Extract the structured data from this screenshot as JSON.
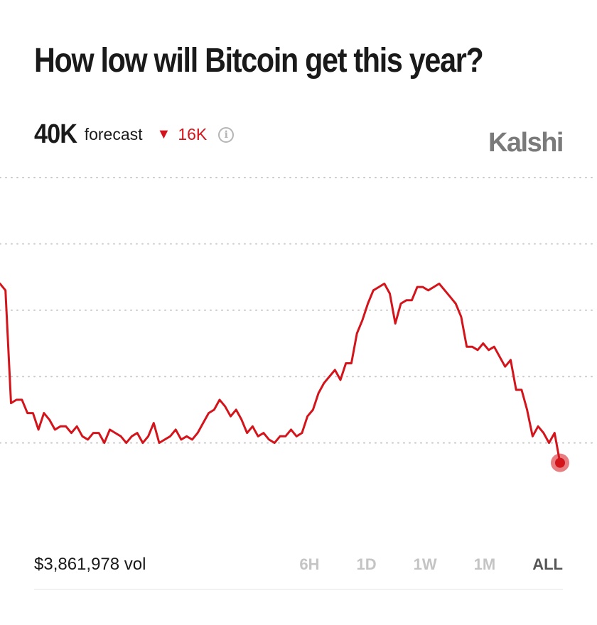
{
  "header": {
    "title": "How low will Bitcoin get this year?"
  },
  "forecast": {
    "value": "40K",
    "label": "forecast",
    "change_arrow": "▼",
    "change_value": "16K",
    "info_icon": "info-icon"
  },
  "brand": {
    "name": "Kalshi"
  },
  "footer": {
    "volume": "$3,861,978 vol",
    "tabs": [
      {
        "label": "6H",
        "active": false
      },
      {
        "label": "1D",
        "active": false
      },
      {
        "label": "1W",
        "active": false
      },
      {
        "label": "1M",
        "active": false
      },
      {
        "label": "ALL",
        "active": true
      }
    ]
  },
  "colors": {
    "line": "#d4141b",
    "grid": "#c8c8c8",
    "muted": "#7a7a7a"
  },
  "chart_data": {
    "type": "line",
    "title": "",
    "xlabel": "",
    "ylabel": "",
    "grid": true,
    "grid_style": "dotted",
    "ylim": [
      0,
      100
    ],
    "y_gridlines": [
      20,
      40,
      60,
      80,
      100
    ],
    "series": [
      {
        "values": [
          68,
          66,
          32,
          33,
          33,
          29,
          29,
          24,
          29,
          27,
          24,
          25,
          25,
          23,
          25,
          22,
          21,
          23,
          23,
          20,
          24,
          23,
          22,
          20,
          22,
          23,
          20,
          22,
          26,
          20,
          21,
          22,
          24,
          21,
          22,
          21,
          23,
          26,
          29,
          30,
          33,
          31,
          28,
          30,
          27,
          23,
          25,
          22,
          23,
          21,
          20,
          22,
          22,
          24,
          22,
          23,
          28,
          30,
          35,
          38,
          40,
          42,
          39,
          44,
          44,
          53,
          57,
          62,
          66,
          67,
          68,
          65,
          56,
          62,
          63,
          63,
          67,
          67,
          66,
          67,
          68,
          66,
          64,
          62,
          58,
          49,
          49,
          48,
          50,
          48,
          49,
          46,
          43,
          45,
          36,
          36,
          30,
          22,
          25,
          23,
          20,
          23,
          14
        ]
      }
    ]
  }
}
